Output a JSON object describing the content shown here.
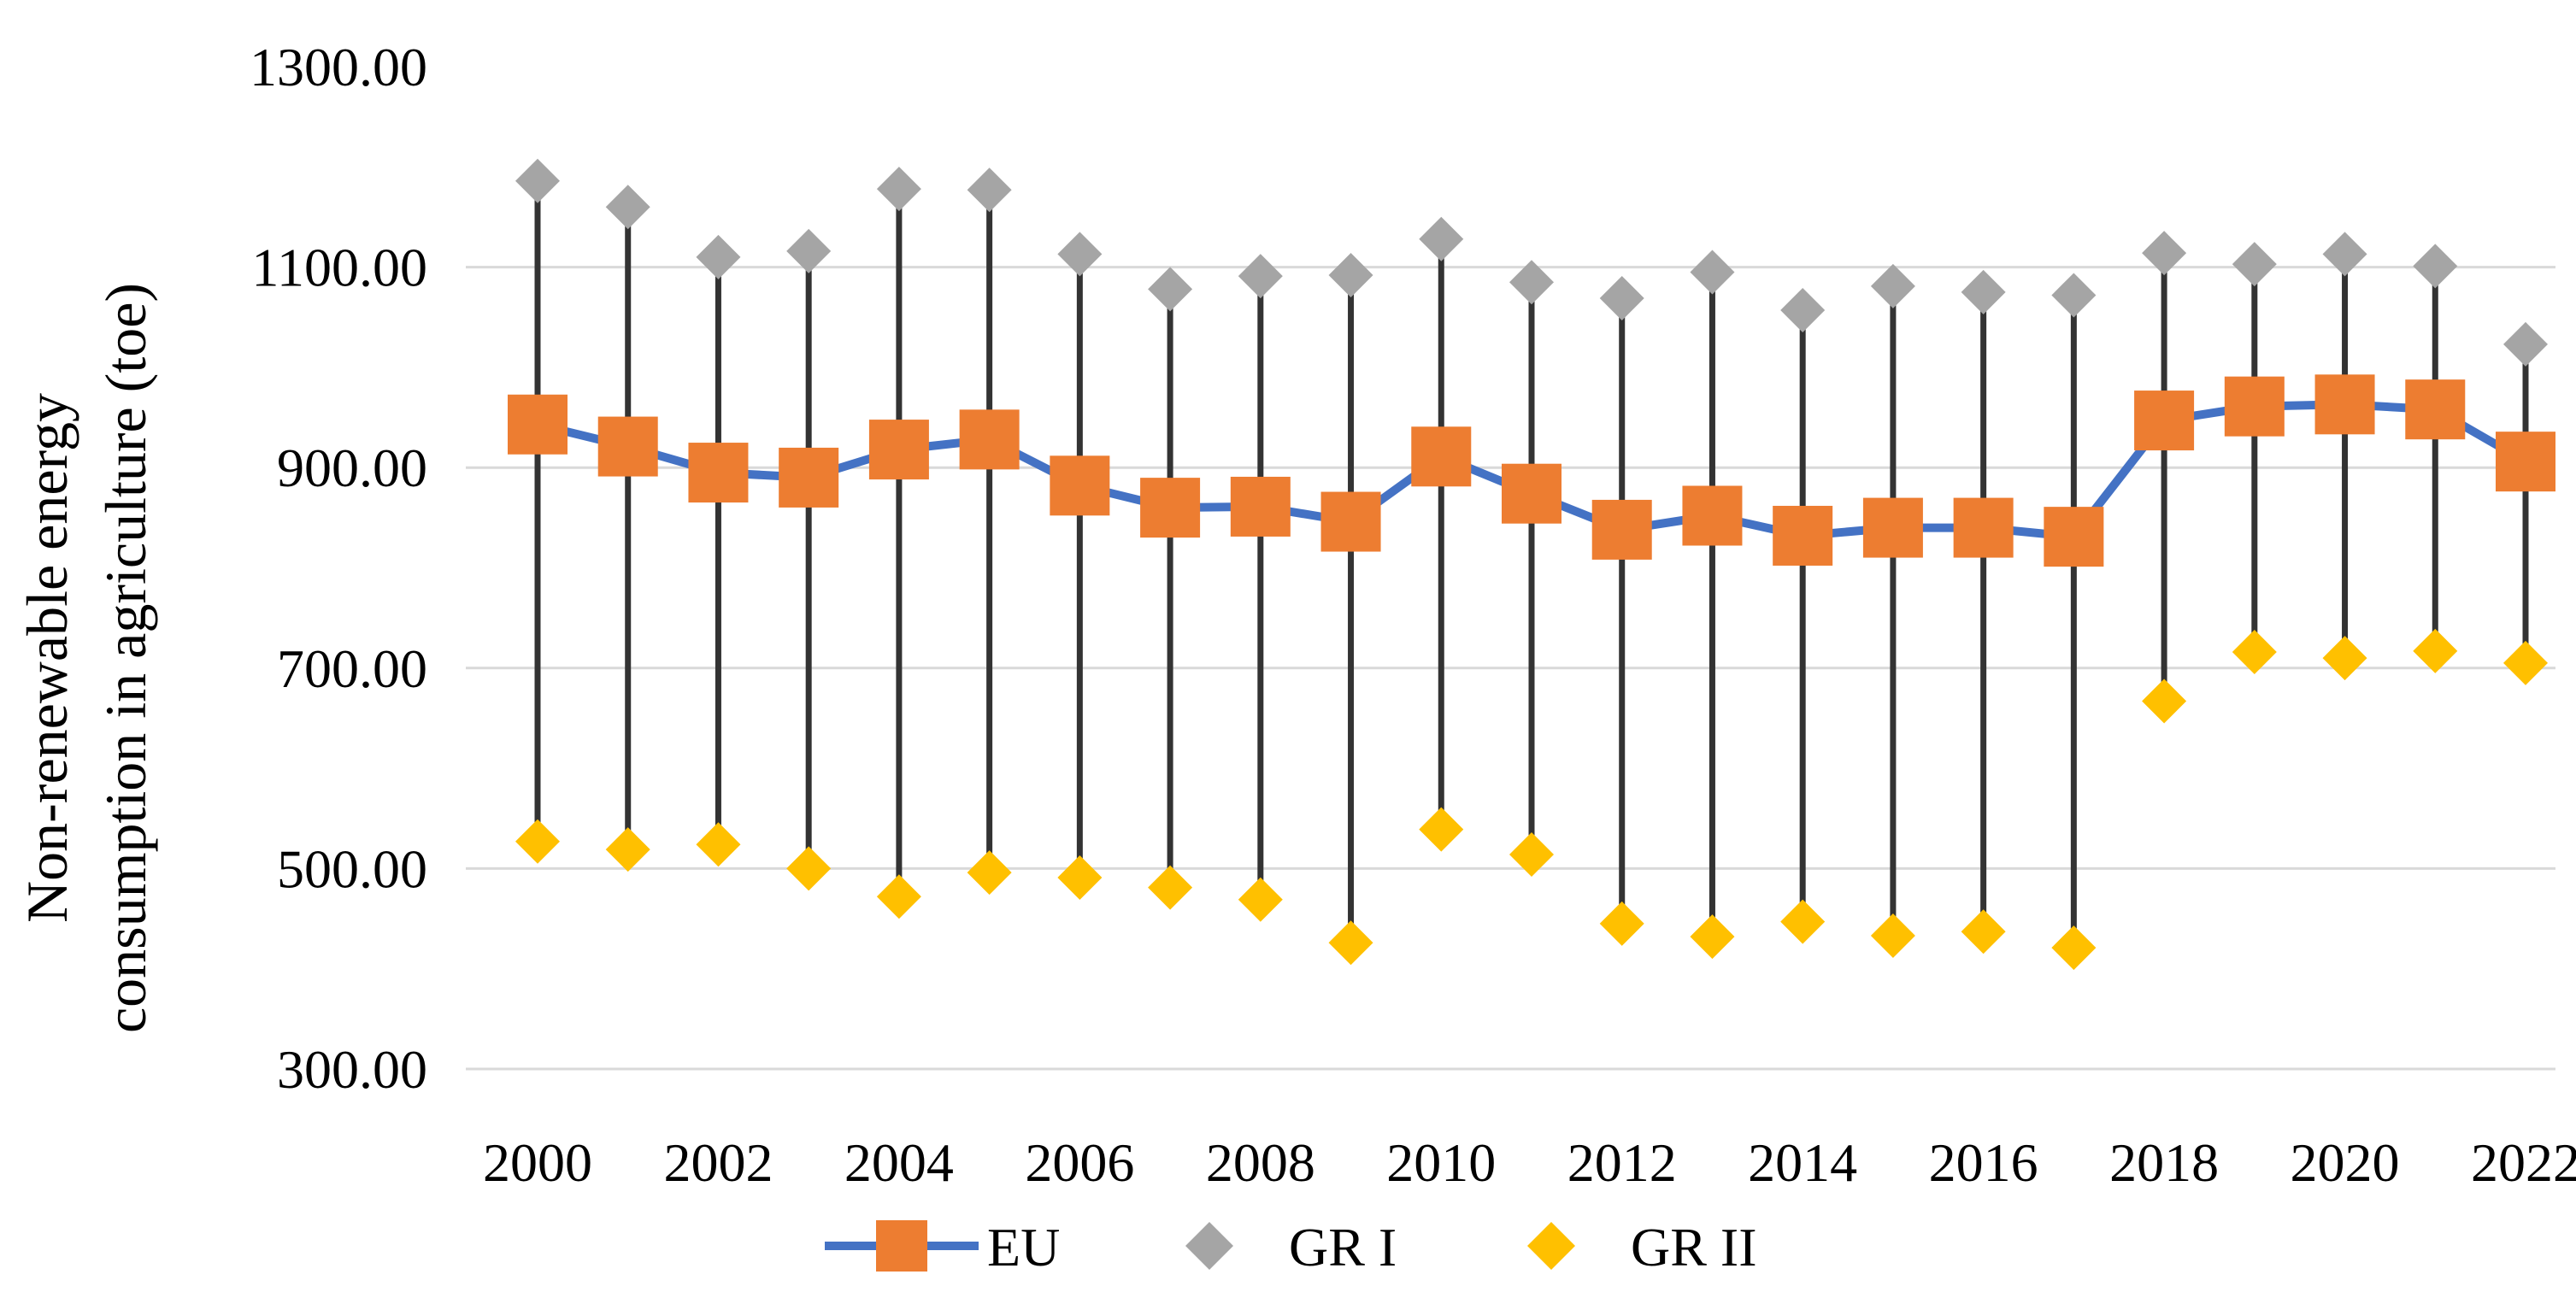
{
  "chart_data": {
    "type": "line",
    "title": "",
    "xlabel": "",
    "ylabel": [
      "Non-renewable energy",
      "consumption in agriculture (toe)"
    ],
    "ylim": [
      300,
      1300
    ],
    "yticks": [
      300,
      500,
      700,
      900,
      1100,
      1300
    ],
    "ytick_labels": [
      "300.00",
      "500.00",
      "700.00",
      "900.00",
      "1100.00",
      "1300.00"
    ],
    "x": [
      2000,
      2001,
      2002,
      2003,
      2004,
      2005,
      2006,
      2007,
      2008,
      2009,
      2010,
      2011,
      2012,
      2013,
      2014,
      2015,
      2016,
      2017,
      2018,
      2019,
      2020,
      2021,
      2022
    ],
    "xtick_labels": [
      "2000",
      "2002",
      "2004",
      "2006",
      "2008",
      "2010",
      "2012",
      "2014",
      "2016",
      "2018",
      "2020",
      "2022"
    ],
    "series": [
      {
        "name": "EU",
        "color_line": "#4472C4",
        "color_marker": "#ED7D31",
        "marker": "square",
        "values": [
          943,
          921,
          895,
          890,
          918,
          928,
          882,
          860,
          861,
          846,
          911,
          874,
          838,
          852,
          832,
          840,
          840,
          831,
          947,
          961,
          963,
          958,
          906
        ]
      },
      {
        "name": "GR I",
        "color_marker": "#A5A5A5",
        "marker": "diamond",
        "values": [
          1186,
          1160,
          1110,
          1116,
          1178,
          1177,
          1113,
          1078,
          1091,
          1092,
          1128,
          1085,
          1069,
          1095,
          1057,
          1081,
          1075,
          1072,
          1114,
          1103,
          1113,
          1101,
          1023
        ]
      },
      {
        "name": "GR II",
        "color_marker": "#FFC000",
        "marker": "diamond",
        "values": [
          527,
          519,
          524,
          500,
          472,
          496,
          491,
          481,
          469,
          426,
          539,
          514,
          445,
          432,
          447,
          433,
          437,
          421,
          667,
          716,
          710,
          717,
          705
        ]
      }
    ],
    "drop_lines": "vertical line from GR II to GR I at each year",
    "drop_line_color": "#333333",
    "gridline_color": "#D9D9D9",
    "legend_position": "bottom",
    "legend": [
      "EU",
      "GR I",
      "GR II"
    ]
  }
}
